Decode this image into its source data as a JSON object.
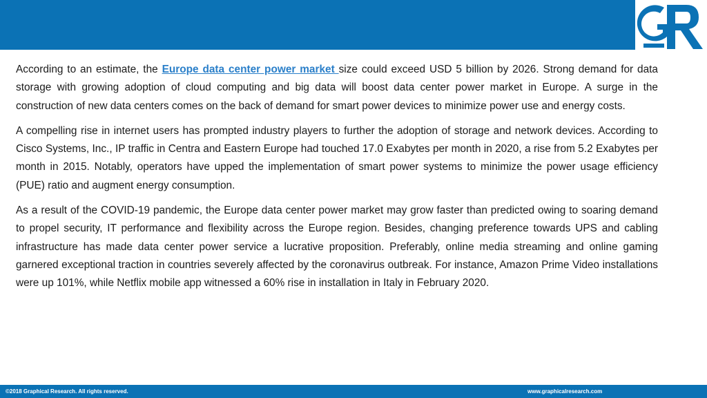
{
  "article": {
    "p1_before_link": "According to an estimate, the ",
    "p1_link": "Europe data center power market ",
    "p1_after_link": "size could exceed USD 5 billion by 2026. Strong demand for data storage with growing adoption of cloud computing and big data will boost data center power market in Europe. A surge in the construction of new data centers comes on the back of demand for smart power devices to minimize power use and energy costs.",
    "p2": "A compelling rise in internet users has prompted industry players to further the adoption of storage and network devices. According to Cisco Systems, Inc., IP traffic in Centra and Eastern Europe had touched 17.0 Exabytes per month in 2020, a rise from 5.2 Exabytes per month in 2015. Notably, operators have upped the implementation of smart power systems to minimize the power usage efficiency (PUE) ratio and augment energy consumption.",
    "p3": "As a result of the COVID-19 pandemic, the Europe data center power market may grow faster than predicted owing to soaring demand to propel security, IT performance and flexibility across the Europe region. Besides, changing preference towards UPS and cabling infrastructure has made data center power service a lucrative proposition. Preferably, online media streaming and online gaming garnered exceptional traction in countries severely affected by the coronavirus outbreak. For instance, Amazon Prime Video installations were up 101%, while Netflix mobile app witnessed a 60% rise in installation in Italy in February 2020."
  },
  "footer": {
    "copyright": "©2018 Graphical Research. All rights reserved.",
    "website": "www.graphicalresearch.com"
  },
  "colors": {
    "brand_blue": "#0b72b5",
    "link_blue": "#2a7fc9"
  },
  "icons": {
    "logo": "gr-logo"
  }
}
